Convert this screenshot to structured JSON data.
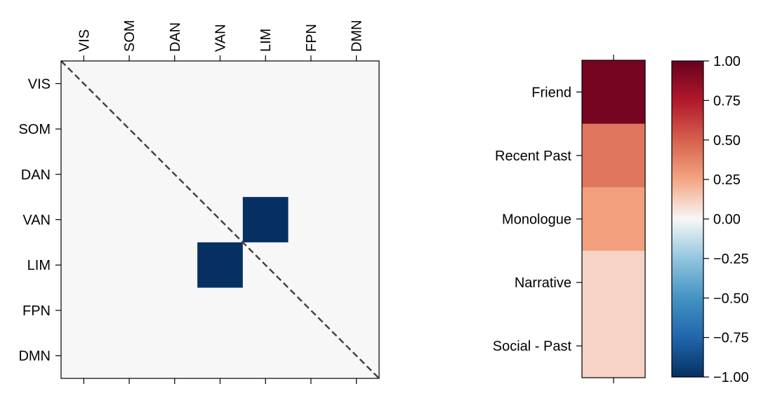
{
  "chart_data": [
    {
      "type": "heatmap",
      "x_tick_labels": [
        "VIS",
        "SOM",
        "DAN",
        "VAN",
        "LIM",
        "FPN",
        "DMN"
      ],
      "y_tick_labels": [
        "VIS",
        "SOM",
        "DAN",
        "VAN",
        "LIM",
        "FPN",
        "DMN"
      ],
      "x_tick_position": "top",
      "values": [
        [
          0,
          0,
          0,
          0,
          0,
          0,
          0
        ],
        [
          0,
          0,
          0,
          0,
          0,
          0,
          0
        ],
        [
          0,
          0,
          0,
          0,
          0,
          0,
          0
        ],
        [
          0,
          0,
          0,
          0,
          -1,
          0,
          0
        ],
        [
          0,
          0,
          0,
          -1,
          0,
          0,
          0
        ],
        [
          0,
          0,
          0,
          0,
          0,
          0,
          0
        ],
        [
          0,
          0,
          0,
          0,
          0,
          0,
          0
        ]
      ],
      "diagonal_line": "dashed",
      "colormap": "RdBu_r",
      "vmin": -1,
      "vmax": 1
    },
    {
      "type": "heatmap",
      "y_tick_labels": [
        "Friend",
        "Recent Past",
        "Monologue",
        "Narrative",
        "Social - Past"
      ],
      "values": [
        0.95,
        0.42,
        0.27,
        0.11,
        0.11
      ],
      "colormap": "RdBu_r",
      "vmin": -1,
      "vmax": 1
    }
  ],
  "colorbar": {
    "ticks": [
      "1.00",
      "0.75",
      "0.50",
      "0.25",
      "0.00",
      "−0.25",
      "−0.50",
      "−0.75",
      "−1.00"
    ],
    "vmin": -1,
    "vmax": 1
  }
}
